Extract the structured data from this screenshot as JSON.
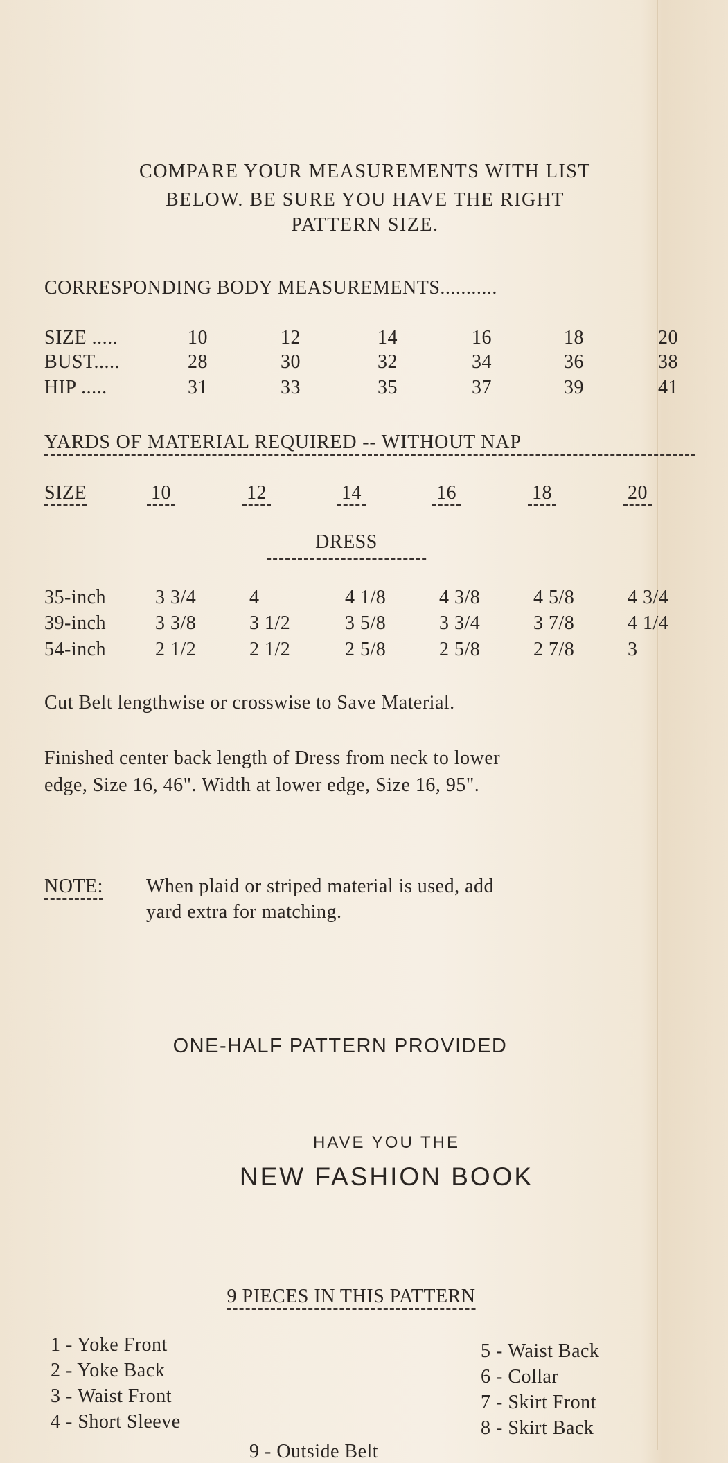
{
  "intro": [
    "COMPARE YOUR MEASUREMENTS WITH LIST",
    "BELOW. BE SURE YOU HAVE THE RIGHT",
    "PATTERN SIZE."
  ],
  "body_measurements": {
    "title": "CORRESPONDING BODY MEASUREMENTS...........",
    "rows": [
      {
        "label": "SIZE .....",
        "values": [
          "10",
          "12",
          "14",
          "16",
          "18",
          "20"
        ]
      },
      {
        "label": "BUST.....",
        "values": [
          "28",
          "30",
          "32",
          "34",
          "36",
          "38"
        ]
      },
      {
        "label": "HIP .....",
        "values": [
          "31",
          "33",
          "35",
          "37",
          "39",
          "41"
        ]
      }
    ]
  },
  "yardage": {
    "title": "YARDS OF MATERIAL REQUIRED -- WITHOUT NAP",
    "size_label": "SIZE",
    "sizes": [
      "10",
      "12",
      "14",
      "16",
      "18",
      "20"
    ],
    "section": "DRESS",
    "rows": [
      {
        "label": "35-inch",
        "values": [
          "3 3/4",
          "4",
          "4 1/8",
          "4 3/8",
          "4 5/8",
          "4 3/4"
        ]
      },
      {
        "label": "39-inch",
        "values": [
          "3 3/8",
          "3 1/2",
          "3 5/8",
          "3 3/4",
          "3 7/8",
          "4 1/4"
        ]
      },
      {
        "label": "54-inch",
        "values": [
          "2 1/2",
          "2 1/2",
          "2 5/8",
          "2 5/8",
          "2 7/8",
          "3"
        ]
      }
    ]
  },
  "belt_note": "Cut Belt lengthwise or crosswise to Save Material.",
  "finished": [
    "Finished center back length of Dress from neck to lower",
    "edge, Size 16, 46\". Width at lower edge, Size 16, 95\"."
  ],
  "note": {
    "label": "NOTE:",
    "lines": [
      "When plaid or striped material is used, add",
      "yard extra for matching."
    ]
  },
  "half_pattern": "ONE-HALF PATTERN PROVIDED",
  "fashion_book": {
    "line1": "HAVE YOU THE",
    "line2": "NEW FASHION BOOK"
  },
  "pieces": {
    "title": "9 PIECES IN THIS PATTERN",
    "left": [
      "1 - Yoke Front",
      "2 - Yoke Back",
      "3 - Waist Front",
      "4 - Short Sleeve"
    ],
    "right": [
      "5 - Waist Back",
      "6 - Collar",
      "7 - Skirt Front",
      "8 - Skirt Back"
    ],
    "last": "9 - Outside Belt"
  }
}
